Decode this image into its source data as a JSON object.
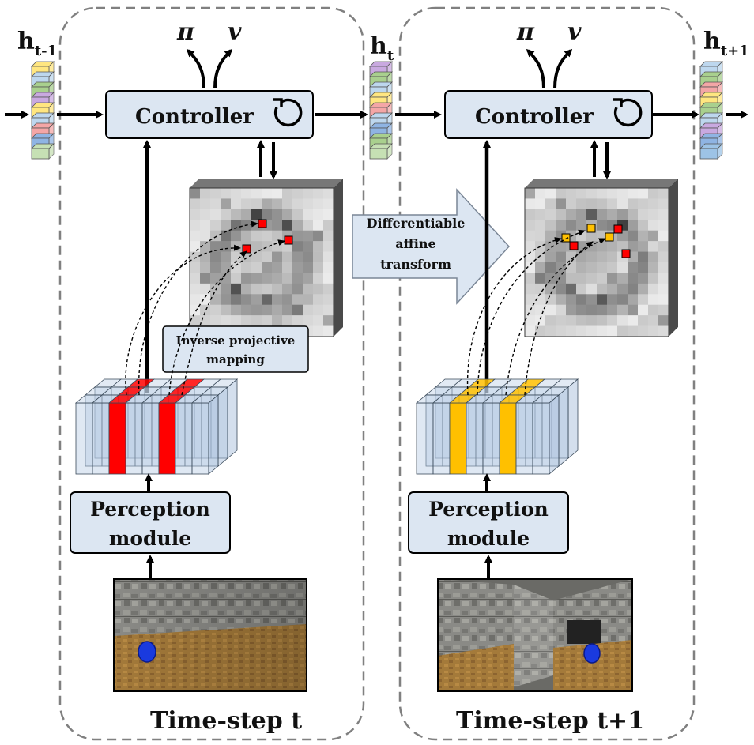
{
  "hidden_states": [
    {
      "main": "h",
      "sub": "t-1"
    },
    {
      "main": "h",
      "sub": "t"
    },
    {
      "main": "h",
      "sub": "t+1"
    }
  ],
  "outputs": {
    "policy": "π",
    "value": "v"
  },
  "panels": [
    {
      "controller_label": "Controller",
      "perception_line1": "Perception",
      "perception_line2": "module",
      "caption": "Time-step t",
      "highlight_color": "#ff0000"
    },
    {
      "controller_label": "Controller",
      "perception_line1": "Perception",
      "perception_line2": "module",
      "caption": "Time-step t+1",
      "highlight_color": "#ffc000"
    }
  ],
  "inverse_mapping": {
    "line1": "Inverse projective",
    "line2": "mapping"
  },
  "affine_transform": {
    "line1": "Differentiable",
    "line2": "affine",
    "line3": "transform"
  },
  "colors": {
    "box_fill": "#dce6f2",
    "panel_border": "#808080",
    "arrow": "#000000",
    "memory_marker_red": "#ff0000",
    "memory_marker_yellow": "#ffc000"
  }
}
